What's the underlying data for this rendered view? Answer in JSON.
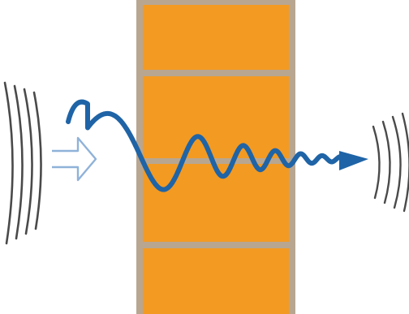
{
  "colors": {
    "background": "#ffffff",
    "wall_fill": "#f39a22",
    "wall_border": "#b8a691",
    "wall_joint": "#b8a691",
    "wave": "#1f64a6",
    "input_arrow": "#8fb2d9",
    "sound_arcs": "#4a4a4a"
  },
  "icons": {
    "source_waves": "sound-waves-left-icon",
    "input_arrow": "hollow-arrow-right-icon",
    "output_arrow": "arrow-right-icon",
    "transmitted_waves": "sound-waves-right-icon"
  }
}
